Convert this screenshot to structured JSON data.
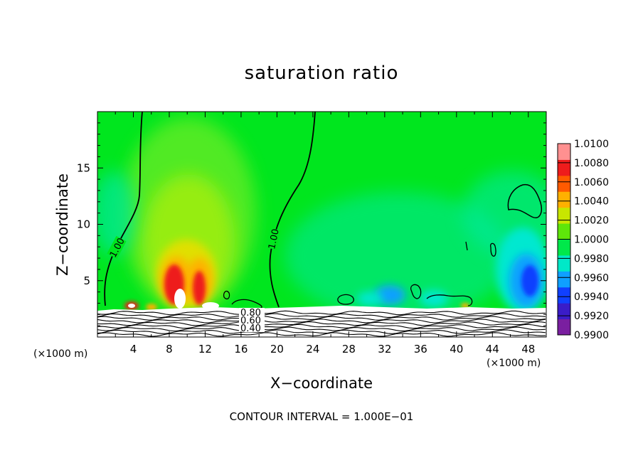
{
  "chart_data": {
    "type": "heatmap",
    "title": "saturation ratio",
    "xlabel": "X−coordinate",
    "ylabel": "Z−coordinate",
    "x_unit_left": "(×1000 m)",
    "x_unit_right": "(×1000 m)",
    "xlim": [
      0,
      50
    ],
    "ylim": [
      0,
      20
    ],
    "x_ticks": [
      "4",
      "8",
      "12",
      "16",
      "20",
      "24",
      "28",
      "32",
      "36",
      "40",
      "44",
      "48"
    ],
    "y_ticks": [
      "5",
      "10",
      "15"
    ],
    "colorbar": {
      "min": 0.99,
      "max": 1.01,
      "labels": [
        "1.0100",
        "1.0080",
        "1.0060",
        "1.0040",
        "1.0020",
        "1.0000",
        "0.9980",
        "0.9960",
        "0.9940",
        "0.9920",
        "0.9900"
      ],
      "colors": [
        "#7a1fa0",
        "#3a1cc8",
        "#1040ff",
        "#0fa0ff",
        "#00e8c8",
        "#00e84a",
        "#5ee60a",
        "#c8e600",
        "#ffb000",
        "#ff5a00",
        "#ee1c1c",
        "#ff9090"
      ]
    },
    "contour_labels": [
      "1.00",
      "1.00",
      "0.80",
      "0.60",
      "0.40"
    ],
    "contour_interval": "CONTOUR INTERVAL = 1.000E−01"
  }
}
